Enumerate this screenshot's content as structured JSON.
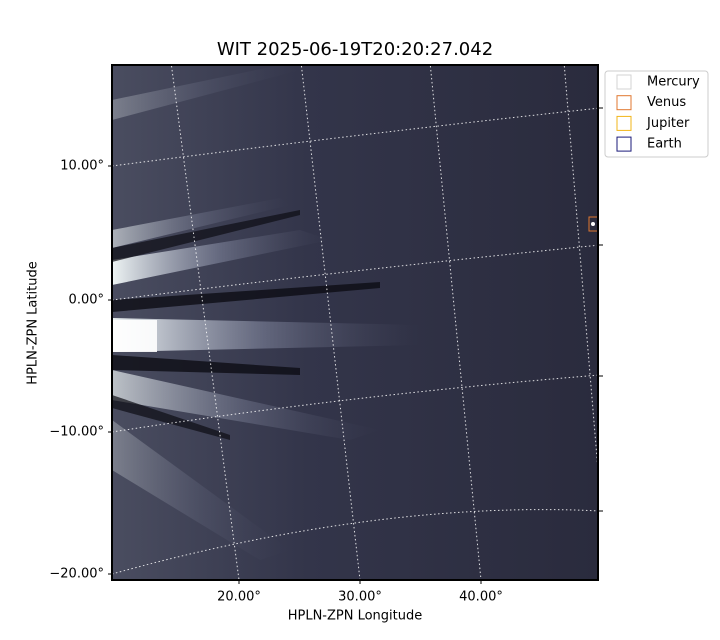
{
  "title": "WIT 2025-06-19T20:20:27.042",
  "x_axis": {
    "label": "HPLN-ZPN Longitude",
    "ticks": [
      "20.00°",
      "30.00°",
      "40.00°"
    ]
  },
  "y_axis": {
    "label": "HPLN-ZPN Latitude",
    "ticks": [
      "10.00°",
      "0.00°",
      "−10.00°",
      "−20.00°"
    ]
  },
  "legend": [
    {
      "name": "Mercury",
      "color": "#d3d3d3"
    },
    {
      "name": "Venus",
      "color": "#e0772f"
    },
    {
      "name": "Jupiter",
      "color": "#f2b418"
    },
    {
      "name": "Earth",
      "color": "#1a1a7a"
    }
  ]
}
